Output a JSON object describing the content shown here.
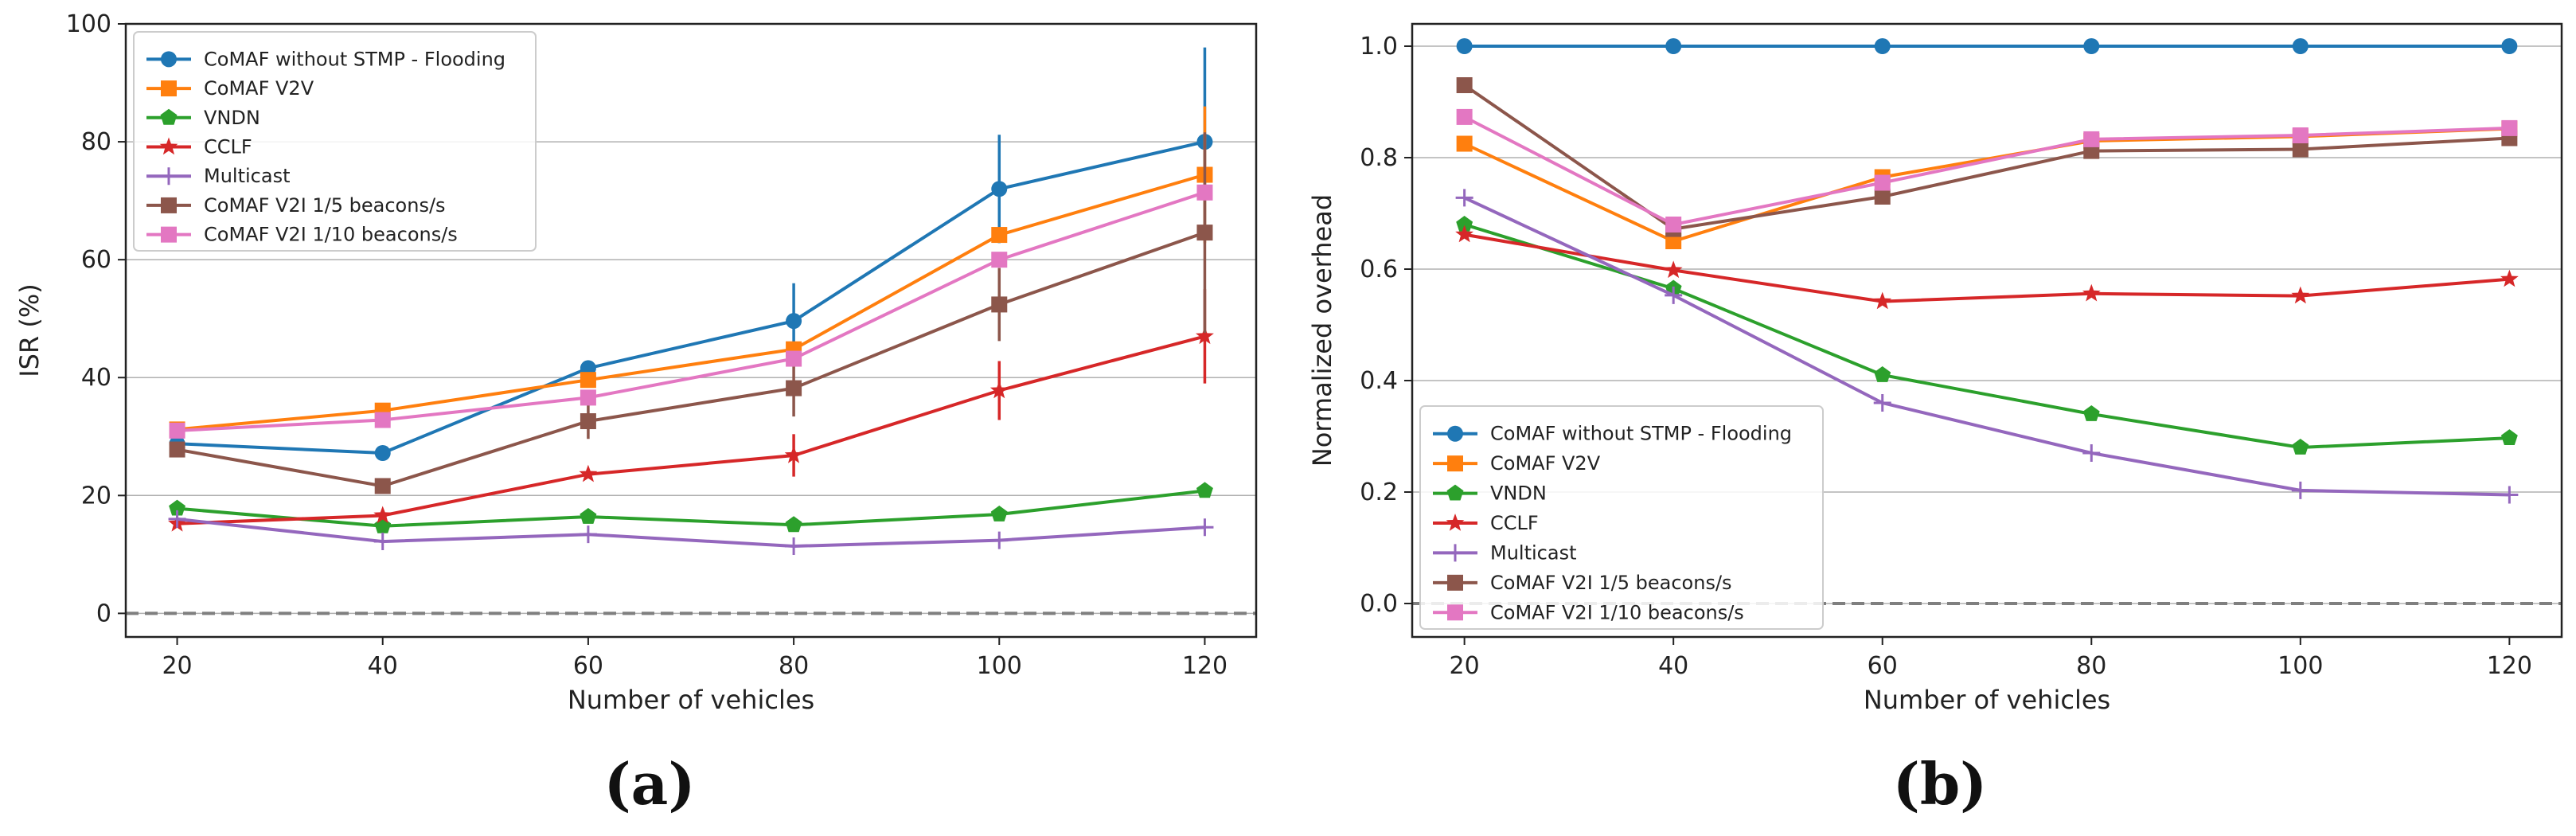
{
  "chart_data": [
    {
      "type": "line",
      "panel_label": "(a)",
      "xlabel": "Number of vehicles",
      "ylabel": "ISR (%)",
      "x": [
        20,
        40,
        60,
        80,
        100,
        120
      ],
      "xticks": [
        "20",
        "40",
        "60",
        "80",
        "100",
        "120"
      ],
      "yticks": [
        "0",
        "20",
        "40",
        "60",
        "80",
        "100"
      ],
      "xlim": [
        15,
        125
      ],
      "ylim": [
        -4,
        100
      ],
      "grid": "horizontal",
      "reference_line": 0,
      "legend_position": "upper-left",
      "series": [
        {
          "name": "CoMAF without STMP - Flooding",
          "color": "#1f77b4",
          "marker": "circle",
          "values": [
            28.8,
            27.2,
            41.6,
            49.6,
            72.0,
            80.0
          ],
          "error": [
            0,
            0,
            0,
            6.4,
            9.2,
            16.0
          ]
        },
        {
          "name": "CoMAF V2V",
          "color": "#ff7f0e",
          "marker": "square",
          "values": [
            31.2,
            34.4,
            39.6,
            44.8,
            64.2,
            74.4
          ],
          "error": [
            0,
            0,
            0,
            0,
            0,
            11.6
          ]
        },
        {
          "name": "VNDN",
          "color": "#2ca02c",
          "marker": "pentagon",
          "values": [
            17.8,
            14.8,
            16.4,
            15.0,
            16.8,
            20.8
          ],
          "error": [
            0,
            0,
            0,
            0,
            0,
            0
          ]
        },
        {
          "name": "CCLF",
          "color": "#d62728",
          "marker": "star",
          "values": [
            15.2,
            16.6,
            23.6,
            26.8,
            37.8,
            47.0
          ],
          "error": [
            0,
            0,
            0,
            3.6,
            5.0,
            8.0
          ]
        },
        {
          "name": "Multicast",
          "color": "#9467bd",
          "marker": "plus",
          "values": [
            16.0,
            12.2,
            13.4,
            11.4,
            12.4,
            14.6
          ],
          "error": [
            0,
            0,
            0,
            0,
            0,
            0
          ]
        },
        {
          "name": "CoMAF V2I 1/5 beacons/s",
          "color": "#8c564b",
          "marker": "square",
          "values": [
            27.8,
            21.6,
            32.6,
            38.2,
            52.4,
            64.6
          ],
          "error": [
            0,
            0,
            3.0,
            4.8,
            6.2,
            17.0
          ]
        },
        {
          "name": "CoMAF V2I 1/10 beacons/s",
          "color": "#e377c2",
          "marker": "square",
          "values": [
            31.0,
            32.8,
            36.6,
            43.2,
            60.0,
            71.4
          ],
          "error": [
            0,
            0,
            0,
            0,
            0,
            0
          ]
        }
      ]
    },
    {
      "type": "line",
      "panel_label": "(b)",
      "xlabel": "Number of vehicles",
      "ylabel": "Normalized overhead",
      "x": [
        20,
        40,
        60,
        80,
        100,
        120
      ],
      "xticks": [
        "20",
        "40",
        "60",
        "80",
        "100",
        "120"
      ],
      "yticks": [
        "0.0",
        "0.2",
        "0.4",
        "0.6",
        "0.8",
        "1.0"
      ],
      "xlim": [
        15,
        125
      ],
      "ylim": [
        -0.06,
        1.04
      ],
      "grid": "horizontal",
      "reference_line": 0,
      "legend_position": "lower-left",
      "series": [
        {
          "name": "CoMAF without STMP - Flooding",
          "color": "#1f77b4",
          "marker": "circle",
          "values": [
            1.0,
            1.0,
            1.0,
            1.0,
            1.0,
            1.0
          ]
        },
        {
          "name": "CoMAF V2V",
          "color": "#ff7f0e",
          "marker": "square",
          "values": [
            0.825,
            0.65,
            0.765,
            0.83,
            0.838,
            0.852
          ]
        },
        {
          "name": "VNDN",
          "color": "#2ca02c",
          "marker": "pentagon",
          "values": [
            0.68,
            0.565,
            0.41,
            0.34,
            0.28,
            0.297
          ]
        },
        {
          "name": "CCLF",
          "color": "#d62728",
          "marker": "star",
          "values": [
            0.662,
            0.598,
            0.542,
            0.556,
            0.552,
            0.582
          ]
        },
        {
          "name": "Multicast",
          "color": "#9467bd",
          "marker": "plus",
          "values": [
            0.728,
            0.553,
            0.36,
            0.27,
            0.203,
            0.195
          ]
        },
        {
          "name": "CoMAF V2I 1/5 beacons/s",
          "color": "#8c564b",
          "marker": "square",
          "values": [
            0.93,
            0.672,
            0.73,
            0.812,
            0.815,
            0.835
          ]
        },
        {
          "name": "CoMAF V2I 1/10 beacons/s",
          "color": "#e377c2",
          "marker": "square",
          "values": [
            0.873,
            0.68,
            0.755,
            0.833,
            0.84,
            0.853
          ]
        }
      ]
    }
  ]
}
